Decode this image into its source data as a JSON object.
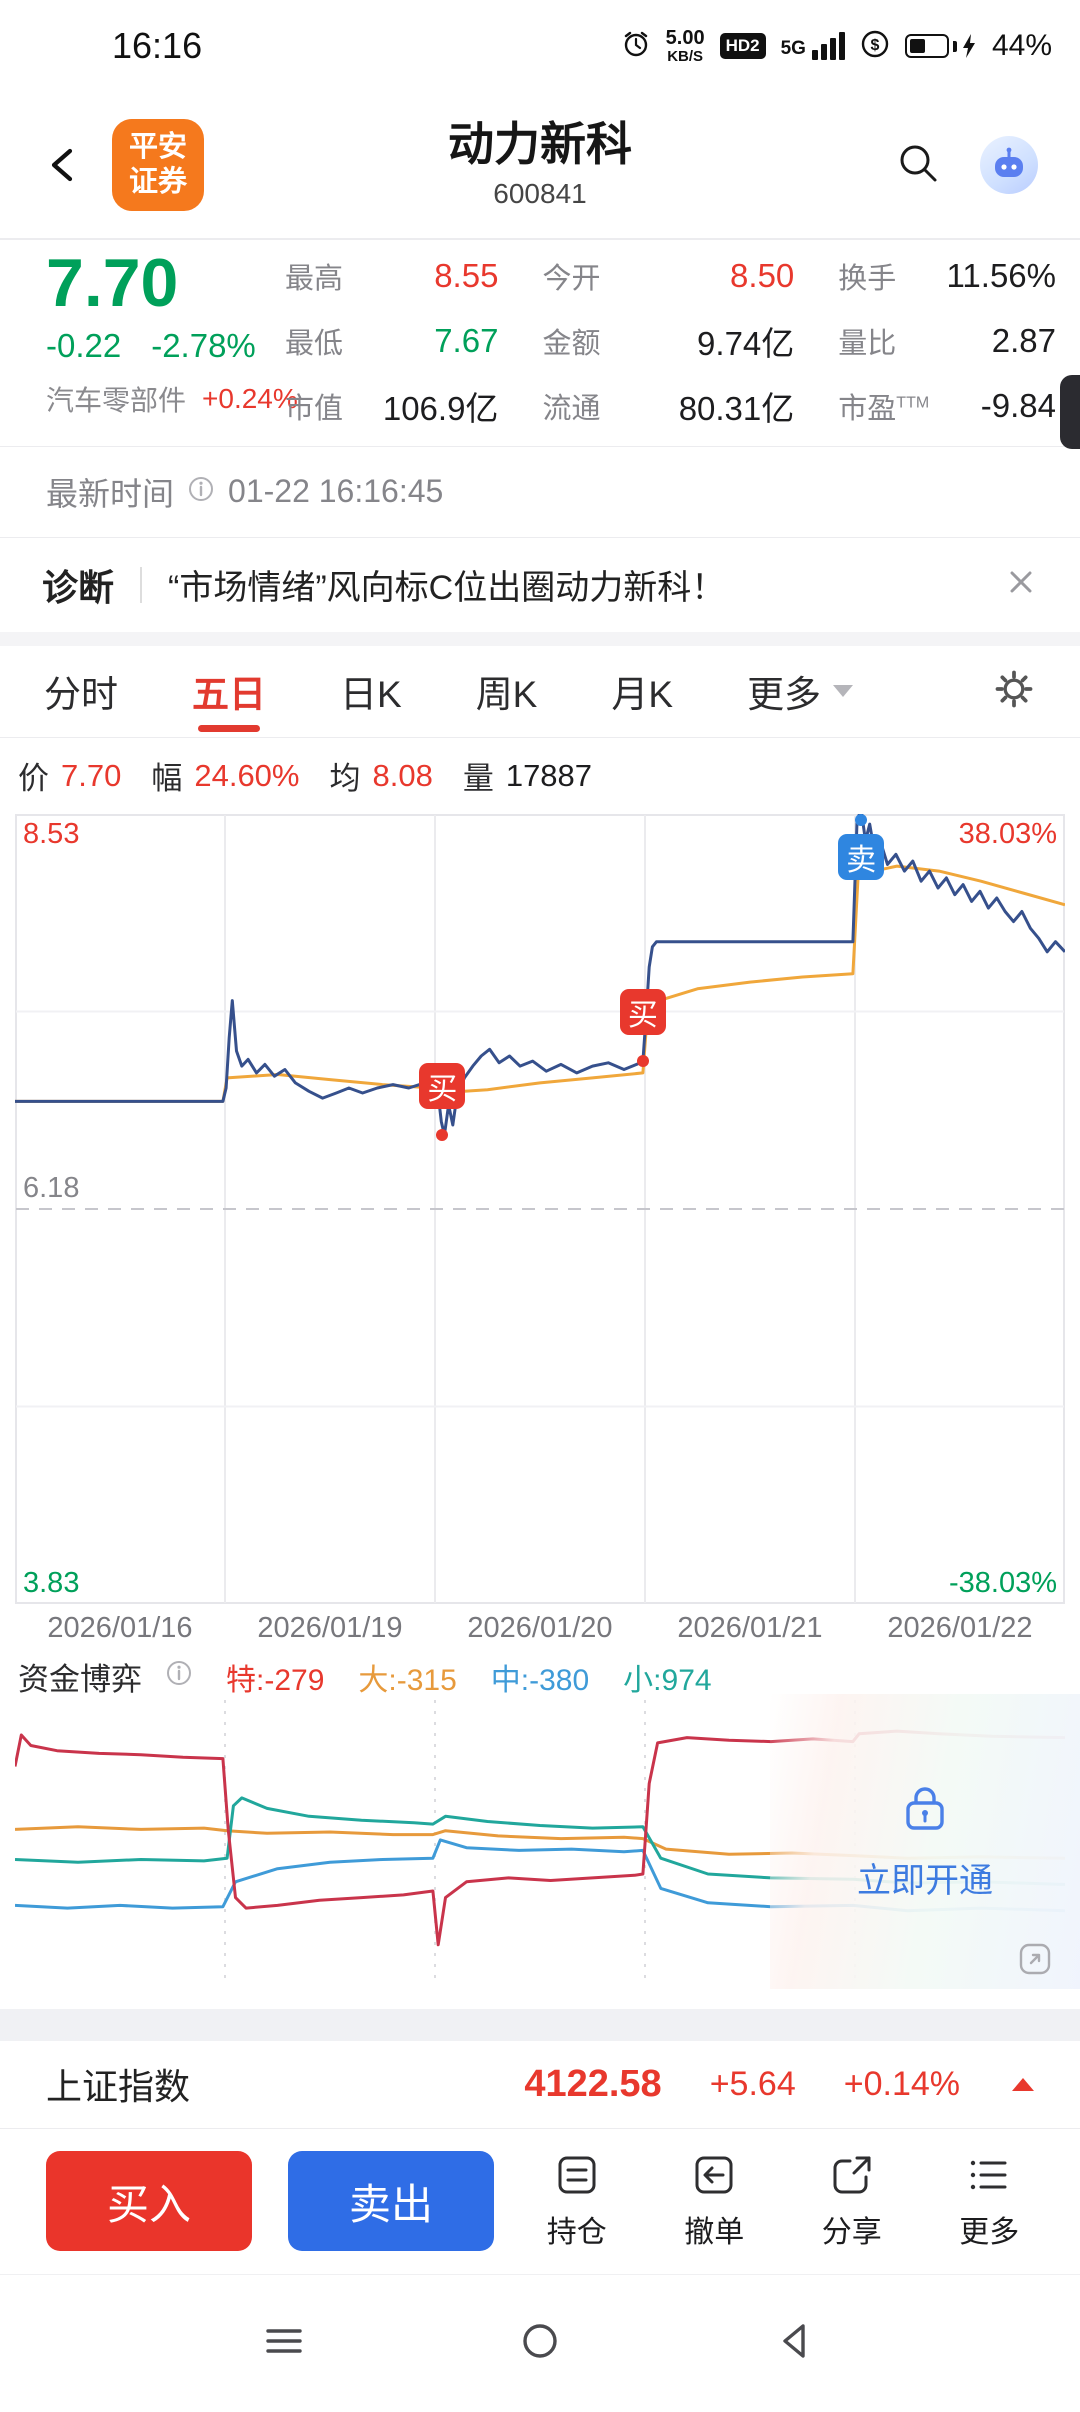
{
  "status_bar": {
    "time": "16:16",
    "speed_value": "5.00",
    "speed_unit": "KB/S",
    "hd_badge": "HD2",
    "network": "5G",
    "currency": "$",
    "battery_pct": "44%"
  },
  "header": {
    "logo_top": "平安",
    "logo_bottom": "证券",
    "title": "动力新科",
    "code": "600841"
  },
  "quote": {
    "price": "7.70",
    "change": "-0.22",
    "change_pct": "-2.78%",
    "sector": "汽车零部件",
    "sector_change": "+0.24%",
    "stats": [
      {
        "label": "最高",
        "sup": "",
        "value": "8.55",
        "cls": "red"
      },
      {
        "label": "今开",
        "sup": "",
        "value": "8.50",
        "cls": "red"
      },
      {
        "label": "换手",
        "sup": "",
        "value": "11.56%",
        "cls": "dark"
      },
      {
        "label": "最低",
        "sup": "",
        "value": "7.67",
        "cls": "green"
      },
      {
        "label": "金额",
        "sup": "",
        "value": "9.74亿",
        "cls": "dark"
      },
      {
        "label": "量比",
        "sup": "",
        "value": "2.87",
        "cls": "dark"
      },
      {
        "label": "市值",
        "sup": "",
        "value": "106.9亿",
        "cls": "dark"
      },
      {
        "label": "流通",
        "sup": "",
        "value": "80.31亿",
        "cls": "dark"
      },
      {
        "label": "市盈",
        "sup": "TTM",
        "value": "-9.84",
        "cls": "dark"
      }
    ]
  },
  "update_row": {
    "label": "最新时间",
    "value": "01-22 16:16:45"
  },
  "diagnosis": {
    "label": "诊断",
    "text": "“市场情绪”风向标C位出圈动力新科！"
  },
  "tabs": {
    "items": [
      "分时",
      "五日",
      "日K",
      "周K",
      "月K"
    ],
    "more": "更多",
    "active": "五日"
  },
  "legend": [
    {
      "label": "价",
      "value": "7.70",
      "cls": "red"
    },
    {
      "label": "幅",
      "value": "24.60%",
      "cls": "red"
    },
    {
      "label": "均",
      "value": "8.08",
      "cls": "red"
    },
    {
      "label": "量",
      "value": "17887",
      "cls": "dark"
    }
  ],
  "marker_labels": {
    "buy": "买",
    "sell": "卖"
  },
  "money_header": {
    "title": "资金博弈",
    "items": [
      {
        "text": "特:-279",
        "cls": "red"
      },
      {
        "text": "大:-315",
        "cls": "orange"
      },
      {
        "text": "中:-380",
        "cls": "blue"
      },
      {
        "text": "小:974",
        "cls": "teal"
      }
    ]
  },
  "overlay": {
    "text": "立即开通"
  },
  "index_bar": {
    "name": "上证指数",
    "value": "4122.58",
    "change": "+5.64",
    "pct": "+0.14%"
  },
  "toolbar": {
    "buy": "买入",
    "sell": "卖出",
    "actions": [
      "持仓",
      "撤单",
      "分享",
      "更多"
    ]
  },
  "chart_data": [
    {
      "type": "line",
      "title": "五日分时",
      "x_labels": [
        "2026/01/16",
        "2026/01/19",
        "2026/01/20",
        "2026/01/21",
        "2026/01/22"
      ],
      "y_max": 8.53,
      "y_mid": 6.18,
      "y_min": 3.83,
      "y_max_label": "8.53",
      "y_mid_label": "6.18",
      "y_min_label": "3.83",
      "pct_max": "38.03%",
      "pct_min": "-38.03%",
      "grid": true,
      "series": [
        {
          "name": "price",
          "color": "#36508c",
          "points": [
            [
              0,
              6.82
            ],
            [
              0.198,
              6.82
            ],
            [
              0.201,
              6.9
            ],
            [
              0.204,
              7.2
            ],
            [
              0.207,
              7.42
            ],
            [
              0.211,
              7.12
            ],
            [
              0.216,
              7.03
            ],
            [
              0.222,
              7.07
            ],
            [
              0.23,
              6.99
            ],
            [
              0.238,
              7.04
            ],
            [
              0.247,
              6.97
            ],
            [
              0.257,
              7.01
            ],
            [
              0.267,
              6.93
            ],
            [
              0.28,
              6.88
            ],
            [
              0.293,
              6.84
            ],
            [
              0.306,
              6.87
            ],
            [
              0.318,
              6.9
            ],
            [
              0.331,
              6.87
            ],
            [
              0.345,
              6.9
            ],
            [
              0.36,
              6.92
            ],
            [
              0.375,
              6.9
            ],
            [
              0.39,
              6.93
            ],
            [
              0.399,
              6.95
            ],
            [
              0.403,
              6.86
            ],
            [
              0.406,
              6.7
            ],
            [
              0.409,
              6.62
            ],
            [
              0.413,
              6.8
            ],
            [
              0.417,
              6.68
            ],
            [
              0.421,
              6.86
            ],
            [
              0.428,
              6.96
            ],
            [
              0.436,
              7.03
            ],
            [
              0.444,
              7.09
            ],
            [
              0.452,
              7.13
            ],
            [
              0.461,
              7.05
            ],
            [
              0.471,
              7.09
            ],
            [
              0.481,
              7.03
            ],
            [
              0.493,
              7.06
            ],
            [
              0.506,
              7.0
            ],
            [
              0.52,
              7.04
            ],
            [
              0.535,
              6.99
            ],
            [
              0.55,
              7.03
            ],
            [
              0.565,
              7.05
            ],
            [
              0.58,
              7.01
            ],
            [
              0.592,
              7.04
            ],
            [
              0.598,
              7.06
            ],
            [
              0.601,
              7.32
            ],
            [
              0.604,
              7.62
            ],
            [
              0.607,
              7.74
            ],
            [
              0.611,
              7.77
            ],
            [
              0.7,
              7.77
            ],
            [
              0.798,
              7.77
            ],
            [
              0.802,
              8.5
            ],
            [
              0.806,
              8.55
            ],
            [
              0.81,
              8.37
            ],
            [
              0.814,
              8.47
            ],
            [
              0.819,
              8.29
            ],
            [
              0.825,
              8.35
            ],
            [
              0.831,
              8.23
            ],
            [
              0.839,
              8.29
            ],
            [
              0.847,
              8.19
            ],
            [
              0.855,
              8.25
            ],
            [
              0.863,
              8.13
            ],
            [
              0.871,
              8.19
            ],
            [
              0.879,
              8.09
            ],
            [
              0.887,
              8.15
            ],
            [
              0.895,
              8.05
            ],
            [
              0.903,
              8.11
            ],
            [
              0.911,
              8.01
            ],
            [
              0.919,
              8.07
            ],
            [
              0.927,
              7.97
            ],
            [
              0.935,
              8.03
            ],
            [
              0.943,
              7.95
            ],
            [
              0.951,
              7.89
            ],
            [
              0.959,
              7.95
            ],
            [
              0.967,
              7.85
            ],
            [
              0.975,
              7.79
            ],
            [
              0.983,
              7.71
            ],
            [
              0.991,
              7.77
            ],
            [
              1,
              7.71
            ]
          ]
        },
        {
          "name": "avg",
          "color": "#f0a73b",
          "points": [
            [
              0,
              6.82
            ],
            [
              0.198,
              6.82
            ],
            [
              0.202,
              6.96
            ],
            [
              0.25,
              6.98
            ],
            [
              0.3,
              6.95
            ],
            [
              0.35,
              6.92
            ],
            [
              0.398,
              6.9
            ],
            [
              0.402,
              6.87
            ],
            [
              0.45,
              6.89
            ],
            [
              0.5,
              6.93
            ],
            [
              0.55,
              6.96
            ],
            [
              0.598,
              6.99
            ],
            [
              0.603,
              7.4
            ],
            [
              0.65,
              7.49
            ],
            [
              0.7,
              7.53
            ],
            [
              0.75,
              7.56
            ],
            [
              0.798,
              7.58
            ],
            [
              0.803,
              8.17
            ],
            [
              0.84,
              8.22
            ],
            [
              0.88,
              8.19
            ],
            [
              0.92,
              8.13
            ],
            [
              0.96,
              8.06
            ],
            [
              1,
              7.99
            ]
          ]
        }
      ],
      "markers": [
        {
          "type": "buy",
          "x": 0.407,
          "price": 6.62
        },
        {
          "type": "buy",
          "x": 0.598,
          "price": 7.06
        },
        {
          "type": "sell",
          "x": 0.806,
          "price": 8.55
        }
      ],
      "stats": {
        "price": "7.70",
        "range_pct": "24.60%",
        "avg": "8.08",
        "volume": "17887"
      }
    },
    {
      "type": "line",
      "title": "资金博弈",
      "y_range": [
        -1,
        1
      ],
      "x_labels": [
        "2026/01/16",
        "2026/01/19",
        "2026/01/20",
        "2026/01/21",
        "2026/01/22"
      ],
      "series": [
        {
          "name": "特",
          "color": "#c9344b",
          "net_value": -279,
          "points": [
            [
              0,
              0.58
            ],
            [
              0.006,
              0.82
            ],
            [
              0.015,
              0.74
            ],
            [
              0.04,
              0.7
            ],
            [
              0.08,
              0.68
            ],
            [
              0.12,
              0.67
            ],
            [
              0.16,
              0.65
            ],
            [
              0.198,
              0.64
            ],
            [
              0.203,
              0.1
            ],
            [
              0.21,
              -0.42
            ],
            [
              0.22,
              -0.5
            ],
            [
              0.25,
              -0.48
            ],
            [
              0.29,
              -0.44
            ],
            [
              0.33,
              -0.42
            ],
            [
              0.37,
              -0.4
            ],
            [
              0.398,
              -0.37
            ],
            [
              0.403,
              -0.78
            ],
            [
              0.41,
              -0.42
            ],
            [
              0.43,
              -0.3
            ],
            [
              0.47,
              -0.27
            ],
            [
              0.51,
              -0.29
            ],
            [
              0.55,
              -0.27
            ],
            [
              0.59,
              -0.25
            ],
            [
              0.598,
              -0.24
            ],
            [
              0.604,
              0.45
            ],
            [
              0.612,
              0.76
            ],
            [
              0.64,
              0.8
            ],
            [
              0.68,
              0.78
            ],
            [
              0.72,
              0.77
            ],
            [
              0.76,
              0.79
            ],
            [
              0.798,
              0.77
            ],
            [
              0.804,
              0.83
            ],
            [
              0.84,
              0.85
            ],
            [
              0.88,
              0.83
            ],
            [
              0.93,
              0.81
            ],
            [
              1,
              0.8
            ]
          ]
        },
        {
          "name": "大",
          "color": "#e79a3c",
          "net_value": -315,
          "points": [
            [
              0,
              0.1
            ],
            [
              0.06,
              0.12
            ],
            [
              0.12,
              0.1
            ],
            [
              0.18,
              0.11
            ],
            [
              0.202,
              0.09
            ],
            [
              0.24,
              0.07
            ],
            [
              0.3,
              0.08
            ],
            [
              0.36,
              0.06
            ],
            [
              0.398,
              0.06
            ],
            [
              0.41,
              0.09
            ],
            [
              0.46,
              0.05
            ],
            [
              0.52,
              0.03
            ],
            [
              0.58,
              0.04
            ],
            [
              0.598,
              0.03
            ],
            [
              0.62,
              -0.05
            ],
            [
              0.68,
              -0.09
            ],
            [
              0.74,
              -0.08
            ],
            [
              0.798,
              -0.1
            ],
            [
              0.85,
              -0.12
            ],
            [
              0.92,
              -0.11
            ],
            [
              1,
              -0.12
            ]
          ]
        },
        {
          "name": "中",
          "color": "#3f9bd8",
          "net_value": -380,
          "points": [
            [
              0,
              -0.48
            ],
            [
              0.05,
              -0.5
            ],
            [
              0.1,
              -0.48
            ],
            [
              0.15,
              -0.5
            ],
            [
              0.198,
              -0.49
            ],
            [
              0.21,
              -0.3
            ],
            [
              0.25,
              -0.2
            ],
            [
              0.3,
              -0.15
            ],
            [
              0.35,
              -0.13
            ],
            [
              0.398,
              -0.12
            ],
            [
              0.405,
              0.02
            ],
            [
              0.43,
              -0.04
            ],
            [
              0.48,
              -0.06
            ],
            [
              0.53,
              -0.05
            ],
            [
              0.58,
              -0.07
            ],
            [
              0.598,
              -0.06
            ],
            [
              0.615,
              -0.35
            ],
            [
              0.66,
              -0.46
            ],
            [
              0.72,
              -0.49
            ],
            [
              0.798,
              -0.48
            ],
            [
              0.85,
              -0.52
            ],
            [
              0.92,
              -0.5
            ],
            [
              1,
              -0.52
            ]
          ]
        },
        {
          "name": "小",
          "color": "#21a79c",
          "net_value": 974,
          "points": [
            [
              0,
              -0.13
            ],
            [
              0.06,
              -0.15
            ],
            [
              0.12,
              -0.13
            ],
            [
              0.18,
              -0.14
            ],
            [
              0.202,
              -0.12
            ],
            [
              0.208,
              0.28
            ],
            [
              0.216,
              0.34
            ],
            [
              0.24,
              0.26
            ],
            [
              0.28,
              0.2
            ],
            [
              0.33,
              0.17
            ],
            [
              0.38,
              0.15
            ],
            [
              0.398,
              0.14
            ],
            [
              0.41,
              0.2
            ],
            [
              0.45,
              0.16
            ],
            [
              0.5,
              0.13
            ],
            [
              0.55,
              0.11
            ],
            [
              0.598,
              0.12
            ],
            [
              0.615,
              -0.12
            ],
            [
              0.66,
              -0.24
            ],
            [
              0.72,
              -0.27
            ],
            [
              0.798,
              -0.28
            ],
            [
              0.85,
              -0.31
            ],
            [
              0.92,
              -0.3
            ],
            [
              1,
              -0.32
            ]
          ]
        }
      ]
    }
  ]
}
